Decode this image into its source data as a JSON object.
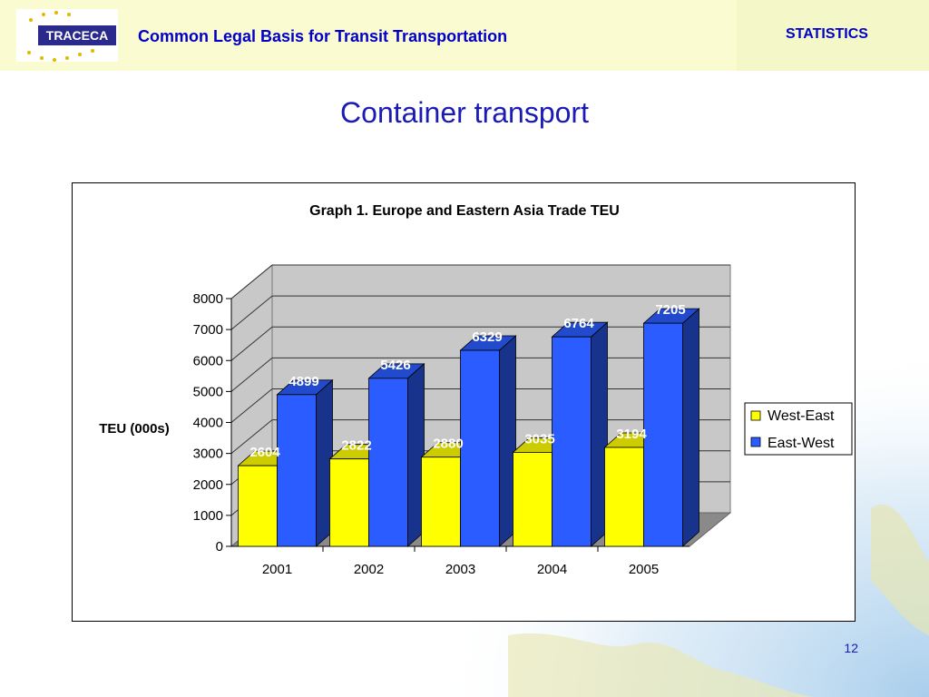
{
  "header": {
    "logo_text": "TRACECA",
    "title": "Common Legal Basis for Transit Transportation",
    "section": "STATISTICS"
  },
  "slide": {
    "title": "Container transport",
    "page_number": "12"
  },
  "colors": {
    "header_bg": "#fbfbd2",
    "text_blue": "#0000c8",
    "west_east": "#ffff00",
    "east_west": "#2b5cff",
    "plot_wall": "#c8c8c8"
  },
  "chart_data": {
    "type": "bar",
    "title": "Graph 1. Europe and Eastern Asia Trade TEU",
    "xlabel": "",
    "ylabel": "TEU (000s)",
    "categories": [
      "2001",
      "2002",
      "2003",
      "2004",
      "2005"
    ],
    "series": [
      {
        "name": "West-East",
        "values": [
          2604,
          2822,
          2880,
          3035,
          3194
        ],
        "color": "#ffff00"
      },
      {
        "name": "East-West",
        "values": [
          4899,
          5426,
          6329,
          6764,
          7205
        ],
        "color": "#2b5cff"
      }
    ],
    "ylim": [
      0,
      8000
    ],
    "yticks": [
      "0",
      "1000",
      "2000",
      "3000",
      "4000",
      "5000",
      "6000",
      "7000",
      "8000"
    ],
    "grid": true,
    "legend": "right",
    "style": "3d"
  }
}
